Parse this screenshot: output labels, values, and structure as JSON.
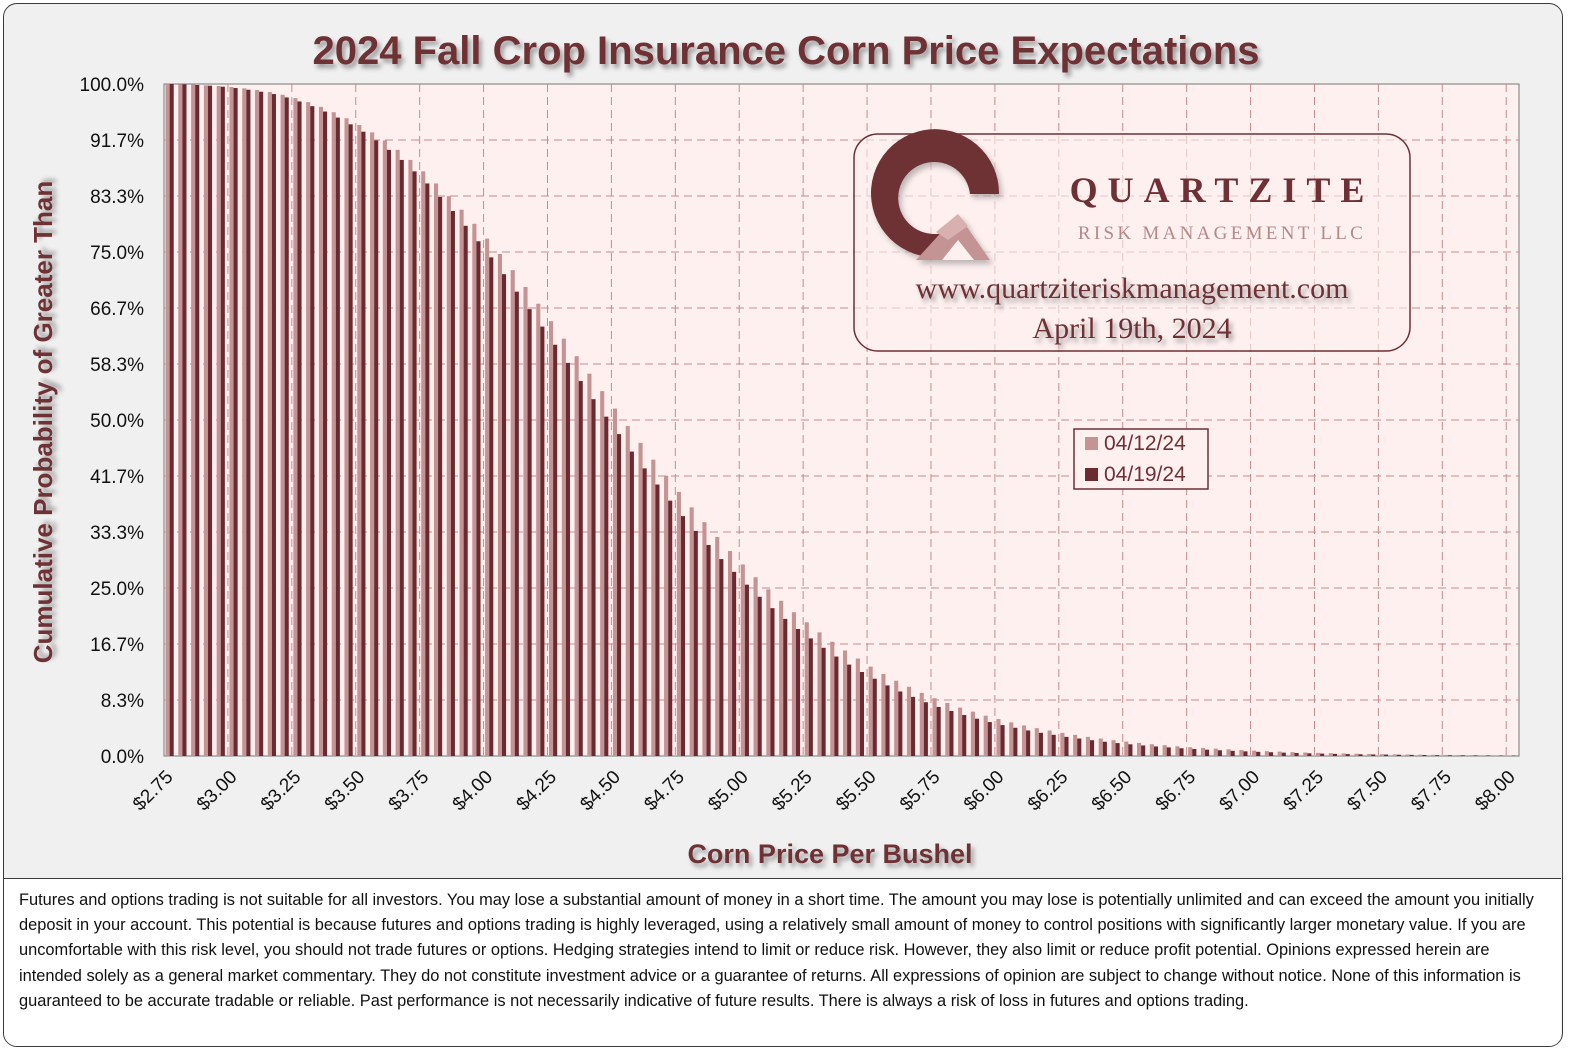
{
  "chart_data": {
    "type": "bar",
    "title": "2024 Fall Crop Insurance Corn Price Expectations",
    "xlabel": "Corn Price Per Bushel",
    "ylabel": "Cumulative Probability of Greater Than",
    "ylim": [
      0,
      100
    ],
    "xlim": [
      2.75,
      8.05
    ],
    "x_tick_labels": [
      "$2.75",
      "$3.00",
      "$3.25",
      "$3.50",
      "$3.75",
      "$4.00",
      "$4.25",
      "$4.50",
      "$4.75",
      "$5.00",
      "$5.25",
      "$5.50",
      "$5.75",
      "$6.00",
      "$6.25",
      "$6.50",
      "$6.75",
      "$7.00",
      "$7.25",
      "$7.50",
      "$7.75",
      "$8.00"
    ],
    "y_tick_labels": [
      "100.0%",
      "91.7%",
      "83.3%",
      "75.0%",
      "66.7%",
      "58.3%",
      "50.0%",
      "41.7%",
      "33.3%",
      "25.0%",
      "16.7%",
      "8.3%",
      "0.0%"
    ],
    "grid": true,
    "legend_position": "center-right",
    "x": {
      "start": 2.75,
      "end": 8.0,
      "step": 0.05
    },
    "series": [
      {
        "name": "04/12/24",
        "color": "#c49393",
        "values": [
          100.0,
          99.95,
          99.9,
          99.8,
          99.7,
          99.55,
          99.35,
          99.1,
          98.8,
          98.4,
          97.9,
          97.3,
          96.6,
          95.8,
          94.9,
          93.9,
          92.8,
          91.6,
          90.2,
          88.7,
          87.0,
          85.2,
          83.3,
          81.3,
          79.2,
          77.0,
          74.7,
          72.3,
          69.8,
          67.3,
          64.7,
          62.1,
          59.5,
          56.9,
          54.3,
          51.7,
          49.1,
          46.6,
          44.1,
          41.7,
          39.3,
          37.0,
          34.8,
          32.6,
          30.5,
          28.5,
          26.6,
          24.8,
          23.1,
          21.4,
          19.9,
          18.4,
          17.0,
          15.7,
          14.5,
          13.3,
          12.2,
          11.2,
          10.3,
          9.4,
          8.6,
          7.9,
          7.2,
          6.6,
          6.0,
          5.5,
          5.0,
          4.55,
          4.15,
          3.8,
          3.45,
          3.15,
          2.85,
          2.6,
          2.35,
          2.15,
          1.95,
          1.75,
          1.6,
          1.45,
          1.3,
          1.2,
          1.1,
          1.0,
          0.9,
          0.8,
          0.72,
          0.65,
          0.58,
          0.52,
          0.47,
          0.42,
          0.38,
          0.34,
          0.3,
          0.27,
          0.24,
          0.22,
          0.2,
          0.18,
          0.16,
          0.14,
          0.13,
          0.12,
          0.11,
          0.1
        ]
      },
      {
        "name": "04/19/24",
        "color": "#6b2a2f",
        "values": [
          100.0,
          99.95,
          99.85,
          99.75,
          99.6,
          99.4,
          99.15,
          98.85,
          98.5,
          98.0,
          97.4,
          96.7,
          95.9,
          95.0,
          94.0,
          92.9,
          91.6,
          90.2,
          88.7,
          87.0,
          85.2,
          83.2,
          81.1,
          78.9,
          76.6,
          74.2,
          71.7,
          69.1,
          66.5,
          63.9,
          61.2,
          58.5,
          55.8,
          53.1,
          50.5,
          47.9,
          45.3,
          42.8,
          40.4,
          38.0,
          35.7,
          33.5,
          31.4,
          29.3,
          27.4,
          25.5,
          23.7,
          22.0,
          20.4,
          18.9,
          17.5,
          16.1,
          14.8,
          13.6,
          12.5,
          11.5,
          10.5,
          9.6,
          8.8,
          8.0,
          7.3,
          6.7,
          6.1,
          5.55,
          5.05,
          4.6,
          4.2,
          3.8,
          3.45,
          3.15,
          2.85,
          2.6,
          2.35,
          2.12,
          1.92,
          1.74,
          1.57,
          1.42,
          1.28,
          1.15,
          1.04,
          0.94,
          0.85,
          0.77,
          0.69,
          0.62,
          0.56,
          0.5,
          0.45,
          0.4,
          0.36,
          0.32,
          0.29,
          0.26,
          0.23,
          0.21,
          0.19,
          0.17,
          0.15,
          0.13,
          0.12,
          0.11,
          0.1,
          0.09,
          0.08,
          0.07
        ]
      }
    ]
  },
  "logo": {
    "brand": "QUARTZITE",
    "subtitle": "RISK MANAGEMENT LLC",
    "url": "www.quartziteriskmanagement.com",
    "date": "April 19th, 2024"
  },
  "colors": {
    "accent": "#6e3035",
    "plot_background": "#fdf0ef",
    "grid": "#c98a8a"
  },
  "disclaimer": "Futures and options trading is not suitable for all investors. You may lose a substantial amount of money in a short time. The amount you may lose is potentially unlimited and can exceed the amount you initially deposit in your account. This potential is because futures and options trading is highly leveraged, using a relatively small amount of money to control positions with significantly larger monetary value. If you are uncomfortable with this risk level, you should not trade futures or options. Hedging strategies intend to limit or reduce risk. However, they also limit or reduce profit potential. Opinions expressed herein are intended solely as a general market commentary. They do not constitute investment advice or a guarantee of returns. All expressions of opinion are subject to change without notice. None of this information is guaranteed to be accurate tradable or reliable. Past performance is not necessarily indicative of future results. There is always a risk of loss in futures and options trading."
}
